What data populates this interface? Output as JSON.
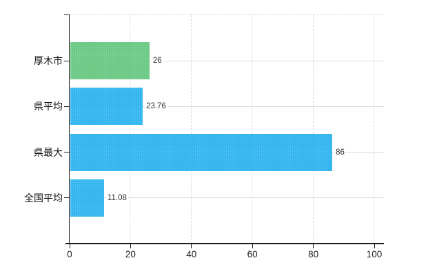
{
  "chart_data": {
    "type": "bar",
    "orientation": "horizontal",
    "title": "",
    "categories": [
      "厚木市",
      "県平均",
      "県最大",
      "全国平均"
    ],
    "values": [
      26,
      23.76,
      86,
      11.08
    ],
    "value_labels": [
      "26",
      "23.76",
      "86",
      "11.08"
    ],
    "series": [
      {
        "name": "value",
        "values": [
          26,
          23.76,
          86,
          11.08
        ]
      }
    ],
    "bar_colors": [
      "#6cc985",
      "#33b5ef",
      "#33b5ef",
      "#33b5ef"
    ],
    "x_ticks": [
      0,
      20,
      40,
      60,
      80,
      100
    ],
    "x_tick_labels": [
      "0",
      "20",
      "40",
      "60",
      "80",
      "100"
    ],
    "xlim": [
      0,
      100
    ],
    "xlabel": "",
    "ylabel": "",
    "grid": true,
    "legend_position": "none",
    "colors": {
      "axis": "#1a1a1a",
      "grid_vertical": "#d8d8d8",
      "grid_horizontal": "#d6ded6",
      "value_label_text": "#333333",
      "category_label_text": "#111111",
      "tick_label_text": "#222222",
      "background": "#ffffff"
    }
  }
}
